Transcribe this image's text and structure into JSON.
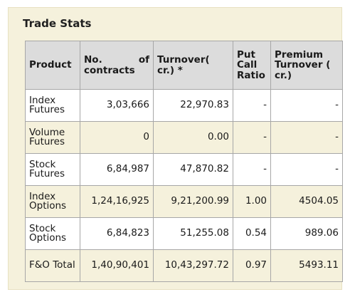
{
  "panel": {
    "title": "Trade Stats"
  },
  "table": {
    "headers": {
      "product": "Product",
      "contracts_a": "No.",
      "contracts_b": "of",
      "contracts_c": "contracts",
      "turnover": "Turnover( cr.) *",
      "pcr": "Put Call Ratio",
      "premium": "Premium Turnover ( cr.)"
    },
    "rows": [
      {
        "product": "Index Futures",
        "contracts": "3,03,666",
        "turnover": "22,970.83",
        "pcr": "-",
        "premium": "-"
      },
      {
        "product": "Volume Futures",
        "contracts": "0",
        "turnover": "0.00",
        "pcr": "-",
        "premium": "-"
      },
      {
        "product": "Stock Futures",
        "contracts": "6,84,987",
        "turnover": "47,870.82",
        "pcr": "-",
        "premium": "-"
      },
      {
        "product": "Index Options",
        "contracts": "1,24,16,925",
        "turnover": "9,21,200.99",
        "pcr": "1.00",
        "premium": "4504.05"
      },
      {
        "product": "Stock Options",
        "contracts": "6,84,823",
        "turnover": "51,255.08",
        "pcr": "0.54",
        "premium": "989.06"
      },
      {
        "product": "F&O Total",
        "contracts": "1,40,90,401",
        "turnover": "10,43,297.72",
        "pcr": "0.97",
        "premium": "5493.11"
      }
    ]
  }
}
